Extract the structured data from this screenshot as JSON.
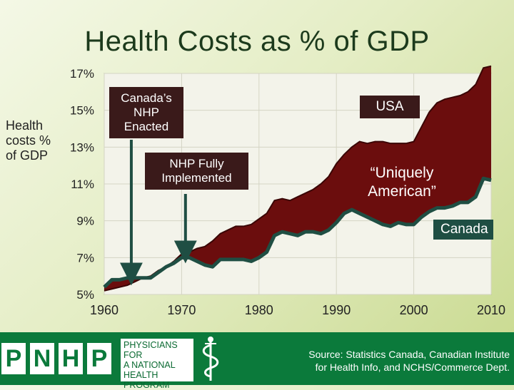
{
  "chart_data": {
    "type": "area",
    "title": "Health Costs as % of GDP",
    "ylabel_lines": [
      "Health",
      "costs %",
      "of GDP"
    ],
    "ylim": [
      5,
      17
    ],
    "y_ticks": [
      "17%",
      "15%",
      "13%",
      "11%",
      "9%",
      "7%",
      "5%"
    ],
    "y_tick_values": [
      17,
      15,
      13,
      11,
      9,
      7,
      5
    ],
    "xlim": [
      1960,
      2010
    ],
    "x_ticks": [
      1960,
      1970,
      1980,
      1990,
      2000,
      2010
    ],
    "series": [
      {
        "name": "USA",
        "color": "#6b0d0d",
        "x": [
          1960,
          1961,
          1962,
          1963,
          1964,
          1965,
          1966,
          1967,
          1968,
          1969,
          1970,
          1971,
          1972,
          1973,
          1974,
          1975,
          1976,
          1977,
          1978,
          1979,
          1980,
          1981,
          1982,
          1983,
          1984,
          1985,
          1986,
          1987,
          1988,
          1989,
          1990,
          1991,
          1992,
          1993,
          1994,
          1995,
          1996,
          1997,
          1998,
          1999,
          2000,
          2001,
          2002,
          2003,
          2004,
          2005,
          2006,
          2007,
          2008,
          2009,
          2010
        ],
        "y": [
          5.2,
          5.3,
          5.4,
          5.5,
          5.7,
          5.9,
          6.0,
          6.3,
          6.5,
          6.8,
          7.2,
          7.3,
          7.5,
          7.6,
          7.9,
          8.3,
          8.5,
          8.7,
          8.7,
          8.8,
          9.1,
          9.4,
          10.1,
          10.2,
          10.1,
          10.3,
          10.5,
          10.7,
          11.0,
          11.4,
          12.1,
          12.6,
          13.0,
          13.3,
          13.2,
          13.3,
          13.3,
          13.2,
          13.2,
          13.2,
          13.3,
          14.1,
          14.9,
          15.4,
          15.6,
          15.7,
          15.8,
          16.0,
          16.4,
          17.3,
          17.4
        ]
      },
      {
        "name": "Canada",
        "color": "#1f4e43",
        "x": [
          1960,
          1961,
          1962,
          1963,
          1964,
          1965,
          1966,
          1967,
          1968,
          1969,
          1970,
          1971,
          1972,
          1973,
          1974,
          1975,
          1976,
          1977,
          1978,
          1979,
          1980,
          1981,
          1982,
          1983,
          1984,
          1985,
          1986,
          1987,
          1988,
          1989,
          1990,
          1991,
          1992,
          1993,
          1994,
          1995,
          1996,
          1997,
          1998,
          1999,
          2000,
          2001,
          2002,
          2003,
          2004,
          2005,
          2006,
          2007,
          2008,
          2009,
          2010
        ],
        "y": [
          5.4,
          5.8,
          5.8,
          5.9,
          5.9,
          5.9,
          5.9,
          6.2,
          6.5,
          6.7,
          7.0,
          7.0,
          6.8,
          6.6,
          6.5,
          6.9,
          6.9,
          6.9,
          6.9,
          6.8,
          7.0,
          7.3,
          8.2,
          8.4,
          8.3,
          8.2,
          8.4,
          8.4,
          8.3,
          8.5,
          8.9,
          9.4,
          9.6,
          9.4,
          9.2,
          9.0,
          8.8,
          8.7,
          8.9,
          8.8,
          8.8,
          9.2,
          9.5,
          9.7,
          9.7,
          9.8,
          10.0,
          10.0,
          10.3,
          11.3,
          11.2
        ]
      }
    ],
    "annotations": {
      "canada_nhp_enacted": "Canada’s NHP Enacted",
      "nhp_fully_implemented": "NHP Fully Implemented",
      "usa": "USA",
      "uniquely_american": "“Uniquely American”",
      "canada": "Canada"
    }
  },
  "footer": {
    "logo_letters": [
      "P",
      "N",
      "H",
      "P"
    ],
    "org_lines": [
      "PHYSICIANS FOR",
      "A NATIONAL",
      "HEALTH",
      "PROGRAM"
    ],
    "source_lines": [
      "Source: Statistics Canada, Canadian Institute",
      "for Health Info, and NCHS/Commerce Dept."
    ]
  },
  "colors": {
    "usa_fill": "#6b0d0d",
    "canada_line": "#1f4e43",
    "footer_green": "#0b7a3b"
  }
}
